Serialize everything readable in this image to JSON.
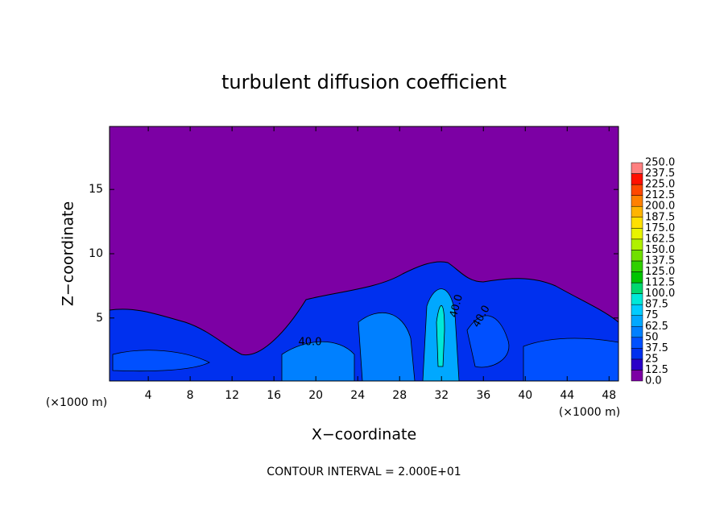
{
  "chart_data": {
    "type": "contour",
    "title": "turbulent diffusion coefficient",
    "x_label": "X−coordinate",
    "y_label": "Z−coordinate",
    "x_unit": "(×1000 m)",
    "footer": "CONTOUR INTERVAL = 2.000E+01",
    "xlim": [
      0.3,
      48.9
    ],
    "ylim": [
      0.1,
      19.9
    ],
    "xticks": [
      4,
      8,
      12,
      16,
      20,
      24,
      28,
      32,
      36,
      40,
      44,
      48
    ],
    "yticks": [
      5,
      10,
      15
    ],
    "contour_labels": [
      "40.0",
      "40.0",
      "40.0"
    ],
    "colorbar": {
      "levels": [
        {
          "value": 0,
          "label": "0.0"
        },
        12.5,
        25,
        37.5,
        50,
        62.5,
        75,
        87.5,
        {
          "value": 100,
          "label": "100.0"
        },
        112.5,
        {
          "value": 125,
          "label": "125.0"
        },
        137.5,
        {
          "value": 150,
          "label": "150.0"
        },
        162.5,
        {
          "value": 175,
          "label": "175.0"
        },
        187.5,
        {
          "value": 200,
          "label": "200.0"
        },
        212.5,
        {
          "value": 225,
          "label": "225.0"
        },
        237.5,
        {
          "value": 250,
          "label": "250.0"
        }
      ],
      "colors": [
        "#7c00a4",
        "#2a00c8",
        "#0030ee",
        "#0050ff",
        "#0080ff",
        "#00a8ff",
        "#00ccff",
        "#00e8d8",
        "#00d870",
        "#00c400",
        "#30d000",
        "#70e000",
        "#b0f000",
        "#e8f400",
        "#ffe000",
        "#ffb400",
        "#ff8000",
        "#ff4800",
        "#ff1000",
        "#ff8080"
      ]
    }
  }
}
